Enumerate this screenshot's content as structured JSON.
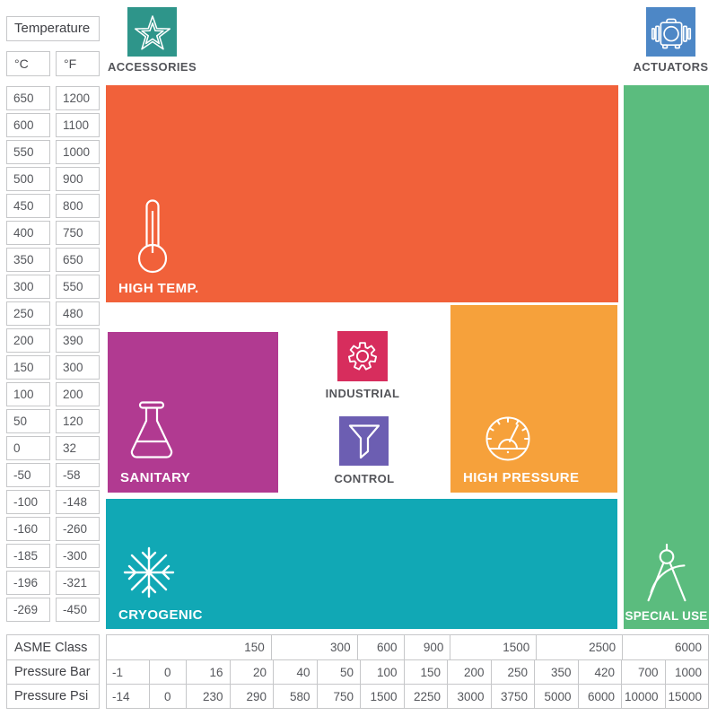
{
  "temperature_panel": {
    "title": "Temperature",
    "unit_c": "°C",
    "unit_f": "°F",
    "rows": [
      {
        "c": "650",
        "f": "1200"
      },
      {
        "c": "600",
        "f": "1100"
      },
      {
        "c": "550",
        "f": "1000"
      },
      {
        "c": "500",
        "f": "900"
      },
      {
        "c": "450",
        "f": "800"
      },
      {
        "c": "400",
        "f": "750"
      },
      {
        "c": "350",
        "f": "650"
      },
      {
        "c": "300",
        "f": "550"
      },
      {
        "c": "250",
        "f": "480"
      },
      {
        "c": "200",
        "f": "390"
      },
      {
        "c": "150",
        "f": "300"
      },
      {
        "c": "100",
        "f": "200"
      },
      {
        "c": "50",
        "f": "120"
      },
      {
        "c": "0",
        "f": "32"
      },
      {
        "c": "-50",
        "f": "-58"
      },
      {
        "c": "-100",
        "f": "-148"
      },
      {
        "c": "-160",
        "f": "-260"
      },
      {
        "c": "-185",
        "f": "-300"
      },
      {
        "c": "-196",
        "f": "-321"
      },
      {
        "c": "-269",
        "f": "-450"
      }
    ]
  },
  "legend": {
    "accessories": {
      "label": "ACCESSORIES",
      "color": "#2E958A"
    },
    "actuators": {
      "label": "ACTUATORS",
      "color": "#4D87C6"
    }
  },
  "regions": {
    "high_temp": {
      "label": "HIGH TEMP.",
      "color": "#F1613A"
    },
    "sanitary": {
      "label": "SANITARY",
      "color": "#B13A91"
    },
    "industrial": {
      "label": "INDUSTRIAL",
      "color": "#D72D5D"
    },
    "control": {
      "label": "CONTROL",
      "color": "#6C5EB2"
    },
    "high_pressure": {
      "label": "HIGH PRESSURE",
      "color": "#F6A13B"
    },
    "cryogenic": {
      "label": "CRYOGENIC",
      "color": "#11A8B5"
    },
    "special_use": {
      "label": "SPECIAL USE",
      "color": "#5BBC7E"
    }
  },
  "pressure_table": {
    "row_labels": [
      "ASME Class",
      "Pressure Bar",
      "Pressure Psi"
    ],
    "asme_class": [
      {
        "value": "150",
        "span": 4
      },
      {
        "value": "300",
        "span": 2
      },
      {
        "value": "600",
        "span": 1
      },
      {
        "value": "900",
        "span": 1
      },
      {
        "value": "1500",
        "span": 2
      },
      {
        "value": "2500",
        "span": 2
      },
      {
        "value": "6000",
        "span": 2
      }
    ],
    "pressure_bar": [
      "-1",
      "0",
      "16",
      "20",
      "40",
      "50",
      "100",
      "150",
      "200",
      "250",
      "350",
      "420",
      "700",
      "1000"
    ],
    "pressure_psi": [
      "-14",
      "0",
      "230",
      "290",
      "580",
      "750",
      "1500",
      "2250",
      "3000",
      "3750",
      "5000",
      "6000",
      "10000",
      "15000"
    ]
  },
  "chart_data": {
    "type": "area",
    "y_axis": {
      "label": "Temperature",
      "units": [
        "°C",
        "°F"
      ],
      "ticks_c": [
        650,
        600,
        550,
        500,
        450,
        400,
        350,
        300,
        250,
        200,
        150,
        100,
        50,
        0,
        -50,
        -100,
        -160,
        -185,
        -196,
        -269
      ],
      "ticks_f": [
        1200,
        1100,
        1000,
        900,
        800,
        750,
        650,
        550,
        480,
        390,
        300,
        200,
        120,
        32,
        -58,
        -148,
        -260,
        -300,
        -321,
        -450
      ]
    },
    "x_axis": {
      "rows": [
        "ASME Class",
        "Pressure Bar",
        "Pressure Psi"
      ],
      "asme_class": [
        150,
        300,
        600,
        900,
        1500,
        2500,
        6000
      ],
      "pressure_bar": [
        -1,
        0,
        16,
        20,
        40,
        50,
        100,
        150,
        200,
        250,
        350,
        420,
        700,
        1000
      ],
      "pressure_psi": [
        -14,
        0,
        230,
        290,
        580,
        750,
        1500,
        2250,
        3000,
        3750,
        5000,
        6000,
        10000,
        15000
      ]
    },
    "regions": [
      {
        "name": "HIGH TEMP.",
        "color": "#F1613A",
        "temp_c_range": [
          300,
          650
        ],
        "pressure_bar_range": [
          -1,
          420
        ],
        "pressure_psi_range": [
          -14,
          6000
        ],
        "asme_class_range": [
          150,
          2500
        ]
      },
      {
        "name": "SANITARY",
        "color": "#B13A91",
        "temp_c_range": [
          -50,
          200
        ],
        "pressure_bar_range": [
          -1,
          20
        ],
        "pressure_psi_range": [
          -14,
          290
        ],
        "asme_class_range": [
          150,
          150
        ]
      },
      {
        "name": "HIGH PRESSURE",
        "color": "#F6A13B",
        "temp_c_range": [
          -50,
          250
        ],
        "pressure_bar_range": [
          200,
          420
        ],
        "pressure_psi_range": [
          3000,
          6000
        ],
        "asme_class_range": [
          1500,
          2500
        ]
      },
      {
        "name": "CRYOGENIC",
        "color": "#11A8B5",
        "temp_c_range": [
          -269,
          -100
        ],
        "pressure_bar_range": [
          -1,
          420
        ],
        "pressure_psi_range": [
          -14,
          6000
        ],
        "asme_class_range": [
          150,
          2500
        ]
      },
      {
        "name": "SPECIAL USE",
        "color": "#5BBC7E",
        "temp_c_range": [
          -269,
          650
        ],
        "pressure_bar_range": [
          700,
          1000
        ],
        "pressure_psi_range": [
          10000,
          15000
        ],
        "asme_class_range": [
          6000,
          6000
        ]
      }
    ],
    "legend_tiles": [
      "ACCESSORIES",
      "ACTUATORS",
      "INDUSTRIAL",
      "CONTROL"
    ],
    "grid": false,
    "legend_position": "inline"
  }
}
